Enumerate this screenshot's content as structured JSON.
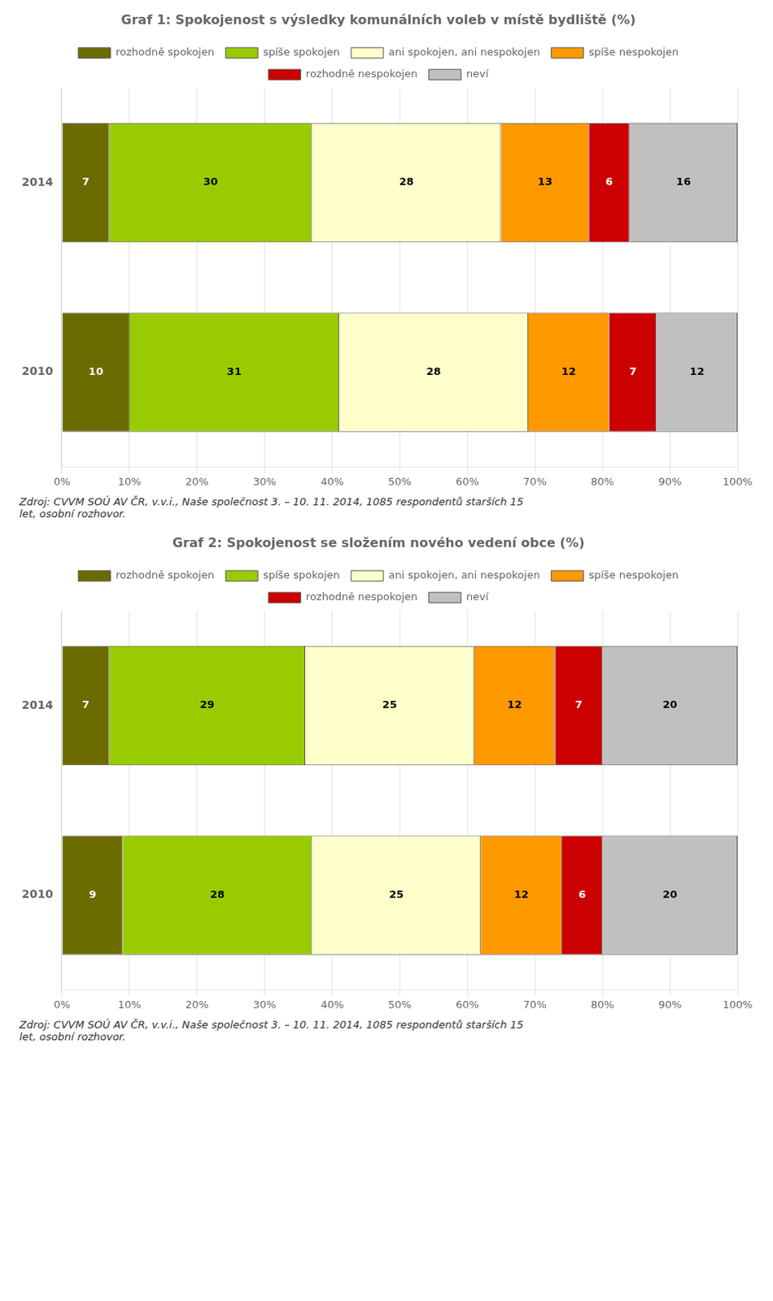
{
  "chart_data": [
    {
      "type": "bar",
      "title": "Graf 1: Spokojenost s výsledky komunálních voleb v místě bydliště (%)",
      "orientation": "horizontal",
      "stacked": true,
      "data_labels": true,
      "grid": true,
      "legend": "top",
      "categories": [
        "2014",
        "2010"
      ],
      "series": [
        {
          "name": "rozhodně spokojen",
          "color": "#6b6b00",
          "values": [
            7,
            10
          ]
        },
        {
          "name": "spíše spokojen",
          "color": "#99cc00",
          "values": [
            30,
            31
          ]
        },
        {
          "name": "ani spokojen, ani nespokojen",
          "color": "#ffffcc",
          "values": [
            28,
            28
          ]
        },
        {
          "name": "spíše nespokojen",
          "color": "#ff9900",
          "values": [
            13,
            12
          ]
        },
        {
          "name": "rozhodně nespokojen",
          "color": "#cc0000",
          "values": [
            6,
            7
          ]
        },
        {
          "name": "neví",
          "color": "#c0c0c0",
          "values": [
            16,
            12
          ]
        }
      ],
      "xlim": [
        0,
        100
      ],
      "xticks": [
        {
          "value": 0,
          "label": "0%"
        },
        {
          "value": 10,
          "label": "10%"
        },
        {
          "value": 20,
          "label": "20%"
        },
        {
          "value": 30,
          "label": "30%"
        },
        {
          "value": 40,
          "label": "40%"
        },
        {
          "value": 50,
          "label": "50%"
        },
        {
          "value": 60,
          "label": "60%"
        },
        {
          "value": 70,
          "label": "70%"
        },
        {
          "value": 80,
          "label": "80%"
        },
        {
          "value": 90,
          "label": "90%"
        },
        {
          "value": 100,
          "label": "100%"
        }
      ],
      "annotations": [
        "Zdroj: CVVM SOÚ AV ČR, v.v.i., Naše společnost 3. – 10. 11. 2014, 1085 respondentů starších 15\nlet, osobní rozhovor."
      ]
    },
    {
      "type": "bar",
      "title": "Graf 2: Spokojenost se složením nového vedení obce (%)",
      "orientation": "horizontal",
      "stacked": true,
      "data_labels": true,
      "grid": true,
      "legend": "top",
      "categories": [
        "2014",
        "2010"
      ],
      "series": [
        {
          "name": "rozhodně spokojen",
          "color": "#6b6b00",
          "values": [
            7,
            9
          ]
        },
        {
          "name": "spíše spokojen",
          "color": "#99cc00",
          "values": [
            29,
            28
          ]
        },
        {
          "name": "ani spokojen, ani nespokojen",
          "color": "#ffffcc",
          "values": [
            25,
            25
          ]
        },
        {
          "name": "spíše nespokojen",
          "color": "#ff9900",
          "values": [
            12,
            12
          ]
        },
        {
          "name": "rozhodně nespokojen",
          "color": "#cc0000",
          "values": [
            7,
            6
          ]
        },
        {
          "name": "neví",
          "color": "#c0c0c0",
          "values": [
            20,
            20
          ]
        }
      ],
      "xlim": [
        0,
        100
      ],
      "xticks": [
        {
          "value": 0,
          "label": "0%"
        },
        {
          "value": 10,
          "label": "10%"
        },
        {
          "value": 20,
          "label": "20%"
        },
        {
          "value": 30,
          "label": "30%"
        },
        {
          "value": 40,
          "label": "40%"
        },
        {
          "value": 50,
          "label": "50%"
        },
        {
          "value": 60,
          "label": "60%"
        },
        {
          "value": 70,
          "label": "70%"
        },
        {
          "value": 80,
          "label": "80%"
        },
        {
          "value": 90,
          "label": "90%"
        },
        {
          "value": 100,
          "label": "100%"
        }
      ],
      "annotations": [
        "Zdroj: CVVM SOÚ AV ČR, v.v.i., Naše společnost 3. – 10. 11. 2014, 1085 respondentů starších 15\nlet, osobní rozhovor."
      ]
    }
  ]
}
